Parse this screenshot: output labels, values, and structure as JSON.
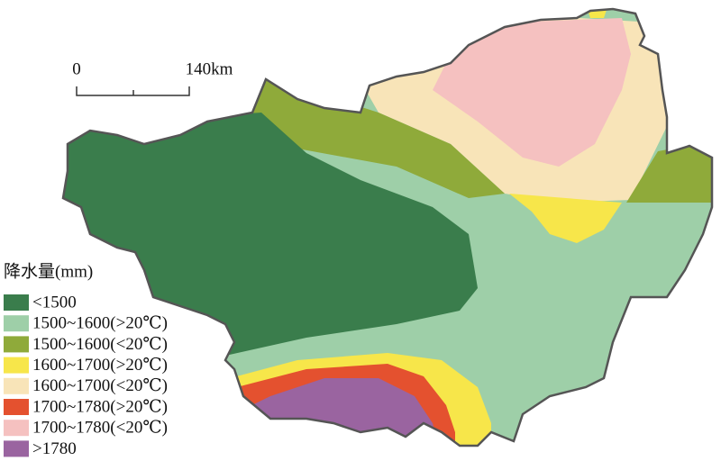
{
  "scale_bar": {
    "start": "0",
    "end": "140km"
  },
  "legend": {
    "title": "降水量(mm)",
    "items": [
      {
        "label": "<1500",
        "color": "#3a7d4c"
      },
      {
        "label": "1500~1600(>20℃)",
        "color": "#9ecfa8"
      },
      {
        "label": "1500~1600(<20℃)",
        "color": "#8faa3a"
      },
      {
        "label": "1600~1700(>20℃)",
        "color": "#f7e64a"
      },
      {
        "label": "1600~1700(<20℃)",
        "color": "#f8e4b8"
      },
      {
        "label": "1700~1780(>20℃)",
        "color": "#e4512f"
      },
      {
        "label": "1700~1780(<20℃)",
        "color": "#f5c1c0"
      },
      {
        "label": ">1780",
        "color": "#9a64a0"
      }
    ]
  }
}
